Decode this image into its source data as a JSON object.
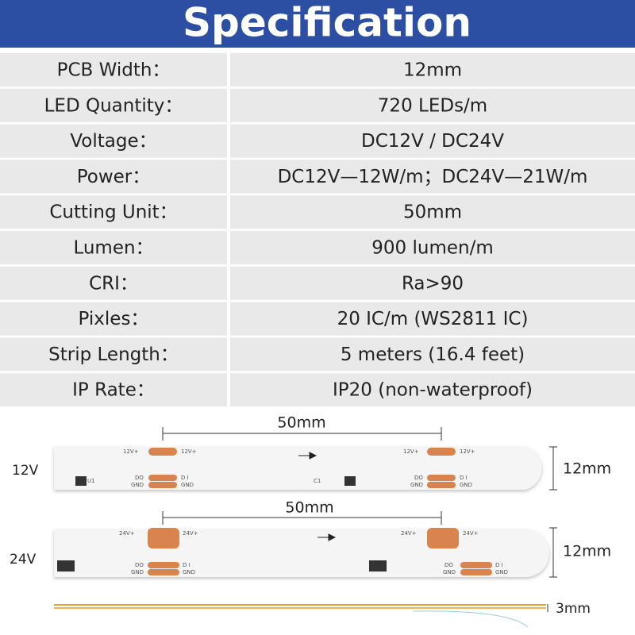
{
  "header": {
    "title": "Specification"
  },
  "table": {
    "rows": [
      [
        "PCB Width：",
        "12mm"
      ],
      [
        "LED Quantity：",
        "720 LEDs/m"
      ],
      [
        "Voltage：",
        "DC12V / DC24V"
      ],
      [
        "Power：",
        "DC12V—12W/m；DC24V—21W/m"
      ],
      [
        "Cutting Unit：",
        "50mm"
      ],
      [
        "Lumen：",
        "900 lumen/m"
      ],
      [
        "CRI：",
        "Ra>90"
      ],
      [
        "Pixles：",
        "20 IC/m (WS2811 IC)"
      ],
      [
        "Strip Length：",
        "5 meters (16.4 feet)"
      ],
      [
        "IP Rate：",
        "IP20 (non-waterproof)"
      ]
    ]
  },
  "diagram": {
    "strips": [
      {
        "voltage": "12V",
        "cut_length": "50mm",
        "width": "12mm",
        "labels": [
          "12V+",
          "12V+",
          "DO",
          "D I",
          "GND",
          "GND",
          "U1",
          "12V+",
          "12V+",
          "DO",
          "D I",
          "GND",
          "GND",
          "C1"
        ]
      },
      {
        "voltage": "24V",
        "cut_length": "50mm",
        "width": "12mm",
        "labels": [
          "24V+",
          "24V+",
          "DO",
          "D I",
          "GND",
          "GND",
          "24V+",
          "24V+",
          "DO",
          "D I",
          "GND",
          "GND"
        ]
      }
    ],
    "thickness": "3mm"
  }
}
